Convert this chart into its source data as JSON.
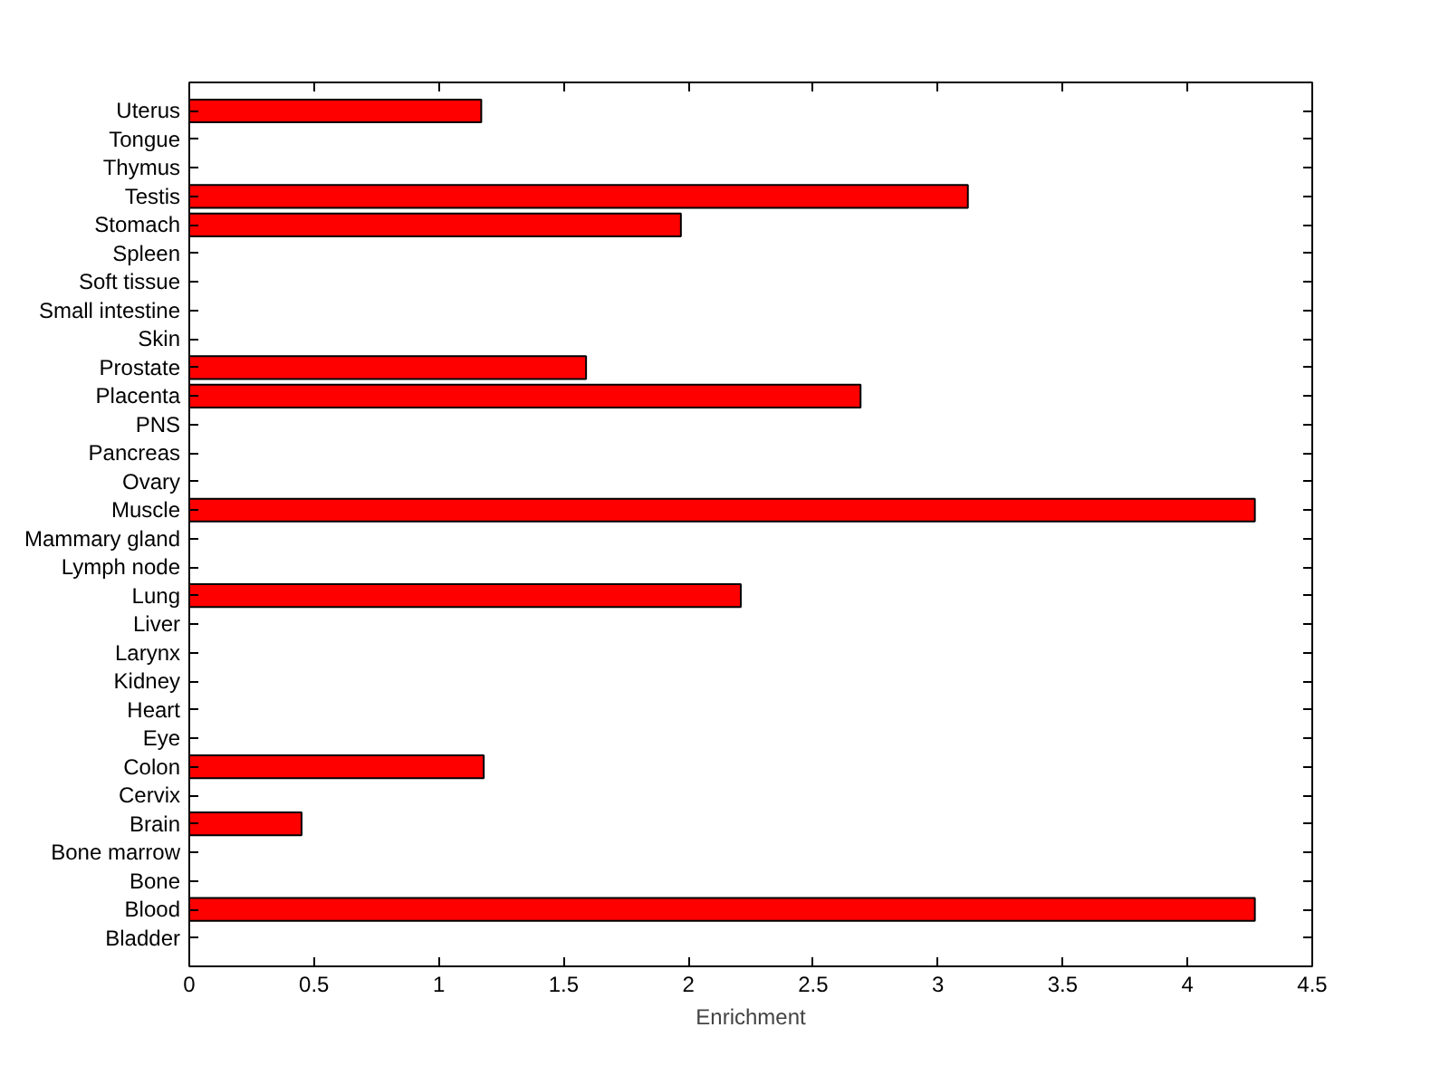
{
  "chart_data": {
    "type": "bar",
    "orientation": "horizontal",
    "xlabel": "Enrichment",
    "categories": [
      "Uterus",
      "Tongue",
      "Thymus",
      "Testis",
      "Stomach",
      "Spleen",
      "Soft tissue",
      "Small intestine",
      "Skin",
      "Prostate",
      "Placenta",
      "PNS",
      "Pancreas",
      "Ovary",
      "Muscle",
      "Mammary gland",
      "Lymph node",
      "Lung",
      "Liver",
      "Larynx",
      "Kidney",
      "Heart",
      "Eye",
      "Colon",
      "Cervix",
      "Brain",
      "Bone marrow",
      "Bone",
      "Blood",
      "Bladder"
    ],
    "values": [
      1.17,
      0,
      0,
      3.12,
      1.97,
      0,
      0,
      0,
      0,
      1.59,
      2.69,
      0,
      0,
      0,
      4.27,
      0,
      0,
      2.21,
      0,
      0,
      0,
      0,
      0,
      1.18,
      0,
      0.45,
      0,
      0,
      4.27,
      0
    ],
    "color": "#ff0000",
    "xlim": [
      0,
      4.5
    ],
    "xticks": [
      0,
      0.5,
      1,
      1.5,
      2,
      2.5,
      3,
      3.5,
      4,
      4.5
    ],
    "grid": false
  }
}
